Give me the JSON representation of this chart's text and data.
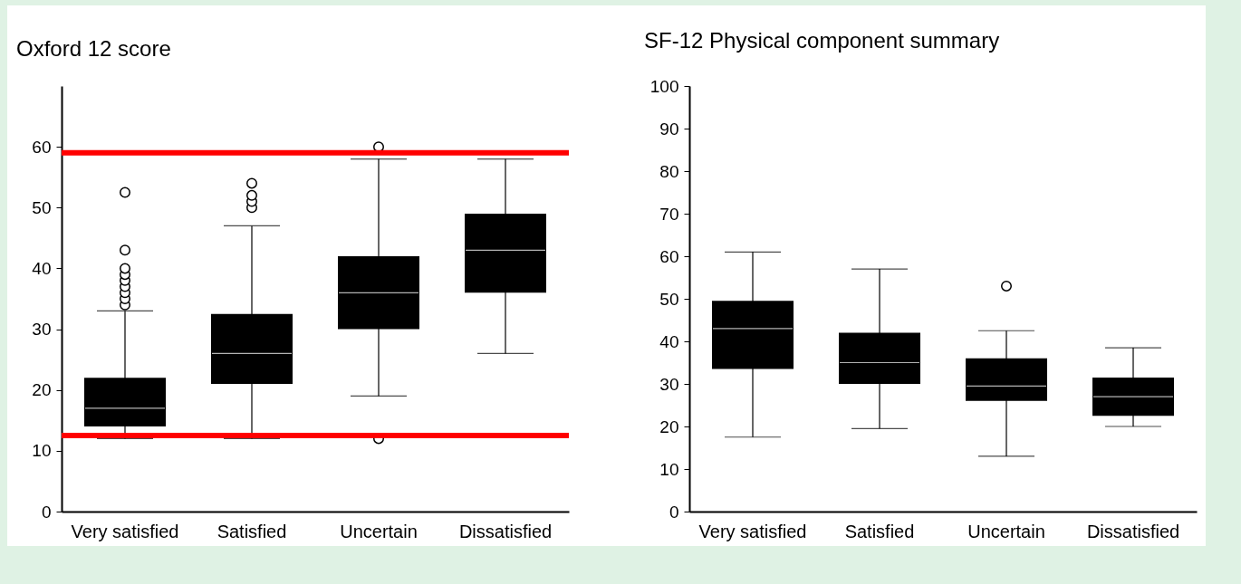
{
  "chart_data": [
    {
      "type": "box",
      "title": "Oxford 12 score",
      "categories": [
        "Very satisfied",
        "Satisfied",
        "Uncertain",
        "Dissatisfied"
      ],
      "ylim": [
        0,
        70
      ],
      "yticks": [
        0,
        10,
        20,
        30,
        40,
        50,
        60
      ],
      "grid": false,
      "boxes": [
        {
          "low": 12,
          "q1": 14,
          "median": 17,
          "q3": 22,
          "high": 33,
          "outliers": [
            34,
            35,
            36,
            37,
            38,
            39,
            40,
            43,
            52.5
          ]
        },
        {
          "low": 12,
          "q1": 21,
          "median": 26,
          "q3": 32.5,
          "high": 47,
          "outliers": [
            50,
            51,
            52,
            54
          ]
        },
        {
          "low": 19,
          "q1": 30,
          "median": 36,
          "q3": 42,
          "high": 58,
          "outliers": [
            60,
            12
          ]
        },
        {
          "low": 26,
          "q1": 36,
          "median": 43,
          "q3": 49,
          "high": 58
        }
      ],
      "ref_lines": [
        {
          "axis": "y",
          "value": 59,
          "color": "#ff0000"
        },
        {
          "axis": "y",
          "value": 12.5,
          "color": "#ff0000"
        }
      ]
    },
    {
      "type": "box",
      "title": "SF-12 Physical component summary",
      "categories": [
        "Very satisfied",
        "Satisfied",
        "Uncertain",
        "Dissatisfied"
      ],
      "ylim": [
        0,
        100
      ],
      "yticks": [
        0,
        10,
        20,
        30,
        40,
        50,
        60,
        70,
        80,
        90,
        100
      ],
      "grid": false,
      "boxes": [
        {
          "low": 17.5,
          "q1": 33.5,
          "median": 43,
          "q3": 49.5,
          "high": 61
        },
        {
          "low": 19.5,
          "q1": 30,
          "median": 35,
          "q3": 42,
          "high": 57
        },
        {
          "low": 13,
          "q1": 26,
          "median": 29.5,
          "q3": 36,
          "high": 42.5,
          "outliers": [
            53
          ]
        },
        {
          "low": 20,
          "q1": 22.5,
          "median": 27,
          "q3": 31.5,
          "high": 38.5
        }
      ]
    }
  ]
}
